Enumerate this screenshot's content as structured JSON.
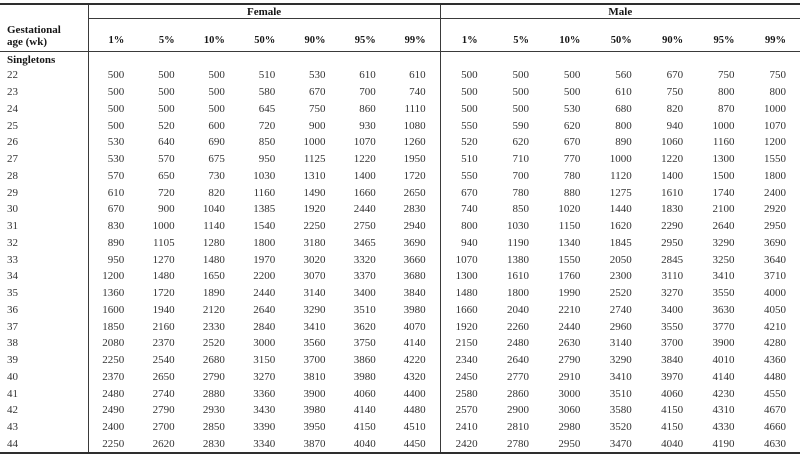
{
  "colors": {
    "background": "#ffffff",
    "rule": "#3a3a3a",
    "header_text": "#161616",
    "data_text": "#333333"
  },
  "table": {
    "row_header_line1": "Gestational",
    "row_header_line2": "age (wk)",
    "group_headers": [
      "Female",
      "Male"
    ],
    "percentiles": [
      "1%",
      "5%",
      "10%",
      "50%",
      "90%",
      "95%",
      "99%"
    ],
    "section_label": "Singletons",
    "rows": [
      {
        "age": "22",
        "female": [
          "500",
          "500",
          "500",
          "510",
          "530",
          "610",
          "610"
        ],
        "male": [
          "500",
          "500",
          "500",
          "560",
          "670",
          "750",
          "750"
        ]
      },
      {
        "age": "23",
        "female": [
          "500",
          "500",
          "500",
          "580",
          "670",
          "700",
          "740"
        ],
        "male": [
          "500",
          "500",
          "500",
          "610",
          "750",
          "800",
          "800"
        ]
      },
      {
        "age": "24",
        "female": [
          "500",
          "500",
          "500",
          "645",
          "750",
          "860",
          "1110"
        ],
        "male": [
          "500",
          "500",
          "530",
          "680",
          "820",
          "870",
          "1000"
        ]
      },
      {
        "age": "25",
        "female": [
          "500",
          "520",
          "600",
          "720",
          "900",
          "930",
          "1080"
        ],
        "male": [
          "550",
          "590",
          "620",
          "800",
          "940",
          "1000",
          "1070"
        ]
      },
      {
        "age": "26",
        "female": [
          "530",
          "640",
          "690",
          "850",
          "1000",
          "1070",
          "1260"
        ],
        "male": [
          "520",
          "620",
          "670",
          "890",
          "1060",
          "1160",
          "1200"
        ]
      },
      {
        "age": "27",
        "female": [
          "530",
          "570",
          "675",
          "950",
          "1125",
          "1220",
          "1950"
        ],
        "male": [
          "510",
          "710",
          "770",
          "1000",
          "1220",
          "1300",
          "1550"
        ]
      },
      {
        "age": "28",
        "female": [
          "570",
          "650",
          "730",
          "1030",
          "1310",
          "1400",
          "1720"
        ],
        "male": [
          "550",
          "700",
          "780",
          "1120",
          "1400",
          "1500",
          "1800"
        ]
      },
      {
        "age": "29",
        "female": [
          "610",
          "720",
          "820",
          "1160",
          "1490",
          "1660",
          "2650"
        ],
        "male": [
          "670",
          "780",
          "880",
          "1275",
          "1610",
          "1740",
          "2400"
        ]
      },
      {
        "age": "30",
        "female": [
          "670",
          "900",
          "1040",
          "1385",
          "1920",
          "2440",
          "2830"
        ],
        "male": [
          "740",
          "850",
          "1020",
          "1440",
          "1830",
          "2100",
          "2920"
        ]
      },
      {
        "age": "31",
        "female": [
          "830",
          "1000",
          "1140",
          "1540",
          "2250",
          "2750",
          "2940"
        ],
        "male": [
          "800",
          "1030",
          "1150",
          "1620",
          "2290",
          "2640",
          "2950"
        ]
      },
      {
        "age": "32",
        "female": [
          "890",
          "1105",
          "1280",
          "1800",
          "3180",
          "3465",
          "3690"
        ],
        "male": [
          "940",
          "1190",
          "1340",
          "1845",
          "2950",
          "3290",
          "3690"
        ]
      },
      {
        "age": "33",
        "female": [
          "950",
          "1270",
          "1480",
          "1970",
          "3020",
          "3320",
          "3660"
        ],
        "male": [
          "1070",
          "1380",
          "1550",
          "2050",
          "2845",
          "3250",
          "3640"
        ]
      },
      {
        "age": "34",
        "female": [
          "1200",
          "1480",
          "1650",
          "2200",
          "3070",
          "3370",
          "3680"
        ],
        "male": [
          "1300",
          "1610",
          "1760",
          "2300",
          "3110",
          "3410",
          "3710"
        ]
      },
      {
        "age": "35",
        "female": [
          "1360",
          "1720",
          "1890",
          "2440",
          "3140",
          "3400",
          "3840"
        ],
        "male": [
          "1480",
          "1800",
          "1990",
          "2520",
          "3270",
          "3550",
          "4000"
        ]
      },
      {
        "age": "36",
        "female": [
          "1600",
          "1940",
          "2120",
          "2640",
          "3290",
          "3510",
          "3980"
        ],
        "male": [
          "1660",
          "2040",
          "2210",
          "2740",
          "3400",
          "3630",
          "4050"
        ]
      },
      {
        "age": "37",
        "female": [
          "1850",
          "2160",
          "2330",
          "2840",
          "3410",
          "3620",
          "4070"
        ],
        "male": [
          "1920",
          "2260",
          "2440",
          "2960",
          "3550",
          "3770",
          "4210"
        ]
      },
      {
        "age": "38",
        "female": [
          "2080",
          "2370",
          "2520",
          "3000",
          "3560",
          "3750",
          "4140"
        ],
        "male": [
          "2150",
          "2480",
          "2630",
          "3140",
          "3700",
          "3900",
          "4280"
        ]
      },
      {
        "age": "39",
        "female": [
          "2250",
          "2540",
          "2680",
          "3150",
          "3700",
          "3860",
          "4220"
        ],
        "male": [
          "2340",
          "2640",
          "2790",
          "3290",
          "3840",
          "4010",
          "4360"
        ]
      },
      {
        "age": "40",
        "female": [
          "2370",
          "2650",
          "2790",
          "3270",
          "3810",
          "3980",
          "4320"
        ],
        "male": [
          "2450",
          "2770",
          "2910",
          "3410",
          "3970",
          "4140",
          "4480"
        ]
      },
      {
        "age": "41",
        "female": [
          "2480",
          "2740",
          "2880",
          "3360",
          "3900",
          "4060",
          "4400"
        ],
        "male": [
          "2580",
          "2860",
          "3000",
          "3510",
          "4060",
          "4230",
          "4550"
        ]
      },
      {
        "age": "42",
        "female": [
          "2490",
          "2790",
          "2930",
          "3430",
          "3980",
          "4140",
          "4480"
        ],
        "male": [
          "2570",
          "2900",
          "3060",
          "3580",
          "4150",
          "4310",
          "4670"
        ]
      },
      {
        "age": "43",
        "female": [
          "2400",
          "2700",
          "2850",
          "3390",
          "3950",
          "4150",
          "4510"
        ],
        "male": [
          "2410",
          "2810",
          "2980",
          "3520",
          "4150",
          "4330",
          "4660"
        ]
      },
      {
        "age": "44",
        "female": [
          "2250",
          "2620",
          "2830",
          "3340",
          "3870",
          "4040",
          "4450"
        ],
        "male": [
          "2420",
          "2780",
          "2950",
          "3470",
          "4040",
          "4190",
          "4630"
        ]
      }
    ]
  }
}
